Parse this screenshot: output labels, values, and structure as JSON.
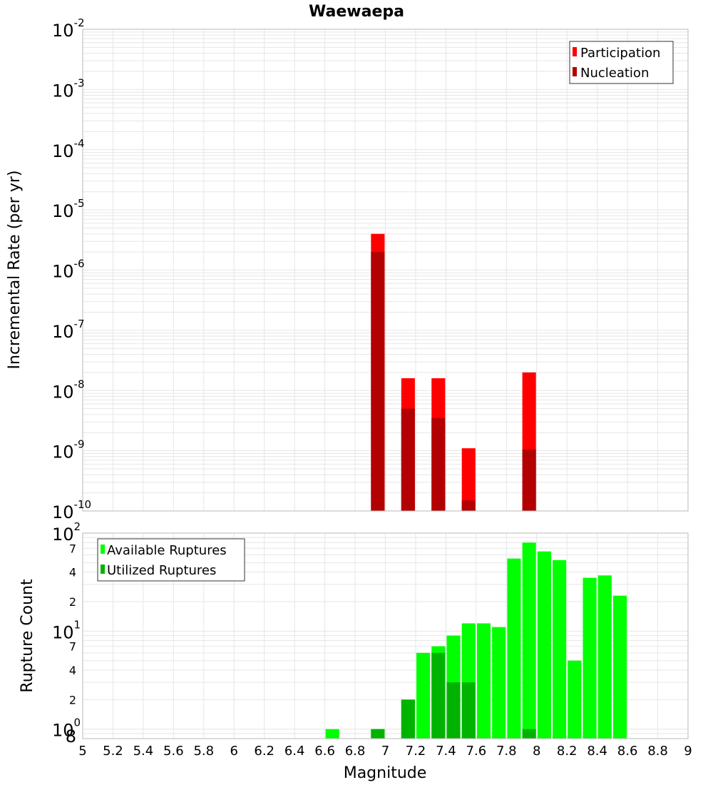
{
  "title": "Waewaepa",
  "colors": {
    "participation": "#ff0000",
    "nucleation": "#b30000",
    "available": "#00ff00",
    "utilized": "#00b300",
    "grid": "#e6e6e6",
    "frame": "#b8b8b8"
  },
  "chart_data": [
    {
      "type": "bar",
      "title": "Waewaepa",
      "xlabel": "Magnitude",
      "ylabel": "Incremental Rate (per yr)",
      "yscale": "log",
      "xlim": [
        5,
        9
      ],
      "ylim": [
        1e-10,
        0.01
      ],
      "grid": true,
      "legend_position": "top-right",
      "y_tick_labels": [
        {
          "base": "10",
          "exp": "-2"
        },
        {
          "base": "10",
          "exp": "-3"
        },
        {
          "base": "10",
          "exp": "-4"
        },
        {
          "base": "10",
          "exp": "-5"
        },
        {
          "base": "10",
          "exp": "-6"
        },
        {
          "base": "10",
          "exp": "-7"
        },
        {
          "base": "10",
          "exp": "-8"
        },
        {
          "base": "10",
          "exp": "-9"
        },
        {
          "base": "10",
          "exp": "-10"
        }
      ],
      "series": [
        {
          "name": "Participation",
          "x": [
            6.95,
            7.15,
            7.35,
            7.55,
            7.95
          ],
          "values": [
            4e-06,
            1.6e-08,
            1.6e-08,
            1.1e-09,
            2e-08
          ]
        },
        {
          "name": "Nucleation",
          "x": [
            6.95,
            7.15,
            7.35,
            7.55,
            7.95
          ],
          "values": [
            2e-06,
            5e-09,
            3.5e-09,
            1.5e-10,
            1.05e-09
          ]
        }
      ]
    },
    {
      "type": "bar",
      "xlabel": "Magnitude",
      "ylabel": "Rupture Count",
      "yscale": "log",
      "xlim": [
        5,
        9
      ],
      "ylim": [
        0.8,
        100
      ],
      "grid": true,
      "legend_position": "top-left",
      "x_tick_labels": [
        "5",
        "5.2",
        "5.4",
        "5.6",
        "5.8",
        "6",
        "6.2",
        "6.4",
        "6.6",
        "6.8",
        "7",
        "7.2",
        "7.4",
        "7.6",
        "7.8",
        "8",
        "8.2",
        "8.4",
        "8.6",
        "8.8",
        "9"
      ],
      "y_tick_labels": [
        {
          "base": "10",
          "exp": "2"
        },
        {
          "base": "10",
          "exp": "1"
        },
        {
          "base": "10",
          "exp": "0"
        }
      ],
      "y_minor_labels": [
        "7",
        "4",
        "2",
        "7",
        "4",
        "2",
        "8"
      ],
      "series": [
        {
          "name": "Available Ruptures",
          "x": [
            6.65,
            6.95,
            7.15,
            7.25,
            7.35,
            7.45,
            7.55,
            7.65,
            7.75,
            7.85,
            7.95,
            8.05,
            8.15,
            8.25,
            8.35,
            8.45,
            8.55
          ],
          "values": [
            1,
            1,
            2,
            6,
            7,
            9,
            12,
            12,
            11,
            55,
            80,
            65,
            53,
            5,
            35,
            37,
            23
          ]
        },
        {
          "name": "Utilized Ruptures",
          "x": [
            6.95,
            7.15,
            7.35,
            7.45,
            7.55,
            7.95
          ],
          "values": [
            1,
            2,
            6,
            3,
            3,
            1
          ]
        }
      ]
    }
  ]
}
